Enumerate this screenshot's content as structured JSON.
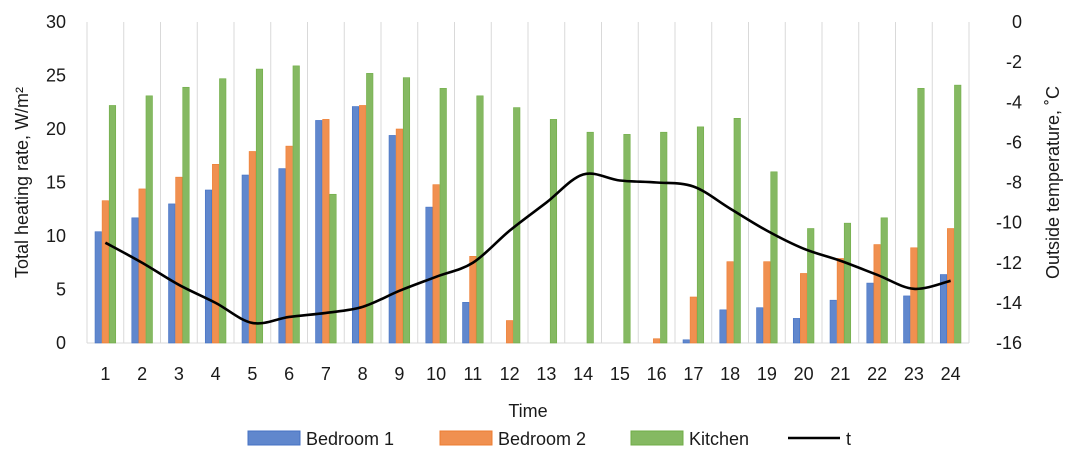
{
  "chart_data": {
    "type": "bar",
    "xlabel": "Time",
    "ylabel": "Total heating rate, W/m²",
    "y2label": "Outside temperature, ˚C",
    "ylim": [
      0,
      30
    ],
    "y2lim": [
      -16,
      0
    ],
    "yticks": [
      "0",
      "5",
      "10",
      "15",
      "20",
      "25",
      "30"
    ],
    "y2ticks": [
      "0",
      "-2",
      "-4",
      "-6",
      "-8",
      "-10",
      "-12",
      "-14",
      "-16"
    ],
    "grid": "vertical",
    "legend_position": "bottom",
    "categories": [
      "1",
      "2",
      "3",
      "4",
      "5",
      "6",
      "7",
      "8",
      "9",
      "10",
      "11",
      "12",
      "13",
      "14",
      "15",
      "16",
      "17",
      "18",
      "19",
      "20",
      "21",
      "22",
      "23",
      "24"
    ],
    "series": [
      {
        "name": "Bedroom 1",
        "type": "bar",
        "axis": "left",
        "color": "#4472c4",
        "values": [
          10.4,
          11.7,
          13.0,
          14.3,
          15.7,
          16.3,
          20.8,
          22.1,
          19.4,
          12.7,
          3.8,
          0,
          0,
          0,
          0,
          0,
          0.3,
          3.1,
          3.3,
          2.3,
          4.0,
          5.6,
          4.4,
          6.4
        ]
      },
      {
        "name": "Bedroom 2",
        "type": "bar",
        "axis": "left",
        "color": "#ed7d31",
        "values": [
          13.3,
          14.4,
          15.5,
          16.7,
          17.9,
          18.4,
          20.9,
          22.2,
          20.0,
          14.8,
          8.1,
          2.1,
          0,
          0,
          0,
          0.4,
          4.3,
          7.6,
          7.6,
          6.5,
          7.9,
          9.2,
          8.9,
          10.7
        ]
      },
      {
        "name": "Kitchen",
        "type": "bar",
        "axis": "left",
        "color": "#70ad47",
        "values": [
          22.2,
          23.1,
          23.9,
          24.7,
          25.6,
          25.9,
          13.9,
          25.2,
          24.8,
          23.8,
          23.1,
          22.0,
          20.9,
          19.7,
          19.5,
          19.7,
          20.2,
          21.0,
          16.0,
          10.7,
          11.2,
          11.7,
          23.8,
          24.1
        ]
      },
      {
        "name": "t",
        "type": "line",
        "axis": "right",
        "color": "#000000",
        "values": [
          -11.0,
          -12.0,
          -13.1,
          -14.0,
          -15.0,
          -14.7,
          -14.5,
          -14.2,
          -13.4,
          -12.7,
          -12.0,
          -10.4,
          -9.0,
          -7.6,
          -7.9,
          -8.0,
          -8.2,
          -9.3,
          -10.4,
          -11.3,
          -11.9,
          -12.6,
          -13.3,
          -12.9
        ]
      }
    ]
  }
}
